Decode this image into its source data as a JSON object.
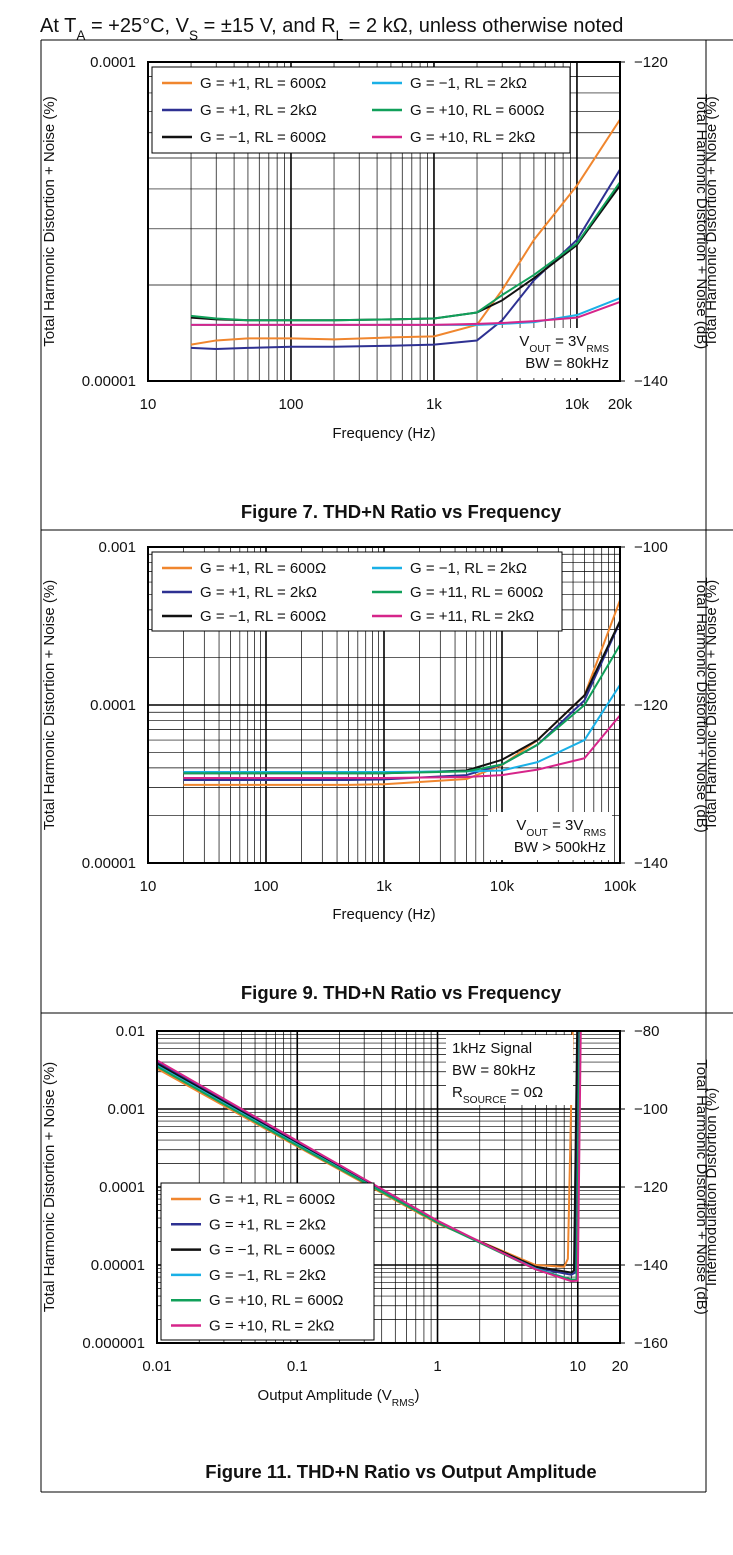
{
  "header": [
    {
      "text": "At T"
    },
    {
      "text": "A",
      "sub": true
    },
    {
      "text": " = +25°C, V"
    },
    {
      "text": "S",
      "sub": true
    },
    {
      "text": " = ±15 V, and R"
    },
    {
      "text": "L",
      "sub": true
    },
    {
      "text": " = 2 kΩ, unless otherwise noted"
    }
  ],
  "chart_data": [
    {
      "type": "line",
      "title": "Figure 7. THD+N Ratio vs Frequency",
      "xlabel": "Frequency (Hz)",
      "ylabel": "Total Harmonic Distortion + Noise (%)",
      "y2label": "Total Harmonic Distortion + Noise (dB)",
      "side_label": "Total Harmonic Distortion + Noise (%)",
      "xscale": "log",
      "yscale": "log",
      "grid": true,
      "legend": "upper left",
      "legend_columns": 2,
      "xlim": [
        10,
        20000
      ],
      "xticks": [
        10,
        100,
        {
          "value": 1000,
          "label": "1k"
        },
        {
          "value": 10000,
          "label": "10k"
        },
        {
          "value": 20000,
          "label": "20k"
        }
      ],
      "xminor": [
        20,
        30,
        40,
        50,
        60,
        70,
        80,
        90,
        200,
        300,
        400,
        500,
        600,
        700,
        800,
        900,
        2000,
        3000,
        4000,
        5000,
        6000,
        7000,
        8000,
        9000
      ],
      "ylim": [
        1e-05,
        0.0001
      ],
      "yticks": [
        1e-05,
        0.0001
      ],
      "yminor": [
        2e-05,
        3e-05,
        4e-05,
        5e-05,
        6e-05,
        7e-05,
        8e-05,
        9e-05
      ],
      "y2lim": [
        -140,
        -120
      ],
      "y2ticks": [
        {
          "value": -140,
          "label": "−140"
        },
        {
          "value": -120,
          "label": "−120"
        }
      ],
      "annotation": [
        [
          {
            "text": "V"
          },
          {
            "text": "OUT",
            "sub": true
          },
          {
            "text": " = 3V"
          },
          {
            "text": "RMS",
            "sub": true
          }
        ],
        [
          {
            "text": "BW = 80kHz"
          }
        ]
      ],
      "x": [
        20,
        30,
        50,
        100,
        200,
        500,
        1000,
        2000,
        3000,
        5000,
        10000,
        20000
      ],
      "series": [
        {
          "name": "G = +1, RL = 600Ω",
          "color": "#f0862e",
          "values": [
            1.3e-05,
            1.34e-05,
            1.36e-05,
            1.36e-05,
            1.35e-05,
            1.37e-05,
            1.38e-05,
            1.5e-05,
            1.93e-05,
            2.77e-05,
            4.1e-05,
            6.6e-05
          ]
        },
        {
          "name": "G = +1, RL = 2kΩ",
          "color": "#2e3192",
          "values": [
            1.27e-05,
            1.26e-05,
            1.27e-05,
            1.28e-05,
            1.28e-05,
            1.29e-05,
            1.3e-05,
            1.34e-05,
            1.55e-05,
            2.07e-05,
            2.77e-05,
            4.6e-05
          ]
        },
        {
          "name": "G = −1, RL = 600Ω",
          "color": "#111111",
          "values": [
            1.58e-05,
            1.56e-05,
            1.55e-05,
            1.55e-05,
            1.55e-05,
            1.56e-05,
            1.57e-05,
            1.64e-05,
            1.79e-05,
            2.1e-05,
            2.67e-05,
            4.1e-05
          ]
        },
        {
          "name": "G = −1, RL = 2kΩ",
          "color": "#1ab0e6",
          "values": [
            1.5e-05,
            1.5e-05,
            1.5e-05,
            1.5e-05,
            1.5e-05,
            1.5e-05,
            1.5e-05,
            1.5e-05,
            1.51e-05,
            1.53e-05,
            1.61e-05,
            1.82e-05
          ]
        },
        {
          "name": "G = +10, RL = 600Ω",
          "color": "#11a05a",
          "values": [
            1.6e-05,
            1.57e-05,
            1.55e-05,
            1.55e-05,
            1.55e-05,
            1.56e-05,
            1.57e-05,
            1.64e-05,
            1.86e-05,
            2.15e-05,
            2.7e-05,
            4.2e-05
          ]
        },
        {
          "name": "G = +10, RL = 2kΩ",
          "color": "#d6258a",
          "values": [
            1.5e-05,
            1.5e-05,
            1.5e-05,
            1.5e-05,
            1.5e-05,
            1.5e-05,
            1.5e-05,
            1.51e-05,
            1.52e-05,
            1.54e-05,
            1.58e-05,
            1.77e-05
          ]
        }
      ]
    },
    {
      "type": "line",
      "title": "Figure 9. THD+N Ratio vs Frequency",
      "xlabel": "Frequency (Hz)",
      "ylabel": "Total Harmonic Distortion + Noise (%)",
      "y2label": "Total Harmonic Distortion + Noise (dB)",
      "side_label": "Total Harmonic Distortion + Noise (%)",
      "xscale": "log",
      "yscale": "log",
      "grid": true,
      "legend": "upper left",
      "legend_columns": 2,
      "xlim": [
        10,
        100000
      ],
      "xticks": [
        10,
        100,
        {
          "value": 1000,
          "label": "1k"
        },
        {
          "value": 10000,
          "label": "10k"
        },
        {
          "value": 100000,
          "label": "100k"
        }
      ],
      "xminor": [
        20,
        30,
        40,
        50,
        60,
        70,
        80,
        90,
        200,
        300,
        400,
        500,
        600,
        700,
        800,
        900,
        2000,
        3000,
        4000,
        5000,
        6000,
        7000,
        8000,
        9000,
        20000,
        30000,
        40000,
        50000,
        60000,
        70000,
        80000,
        90000
      ],
      "ylim": [
        1e-05,
        0.001
      ],
      "yticks": [
        1e-05,
        0.0001,
        0.001
      ],
      "yminor": [
        2e-05,
        3e-05,
        4e-05,
        5e-05,
        6e-05,
        7e-05,
        8e-05,
        9e-05,
        0.0002,
        0.0003,
        0.0004,
        0.0005,
        0.0006,
        0.0007,
        0.0008,
        0.0009
      ],
      "y2lim": [
        -140,
        -100
      ],
      "y2ticks": [
        {
          "value": -140,
          "label": "−140"
        },
        {
          "value": -120,
          "label": "−120"
        },
        {
          "value": -100,
          "label": "−100"
        }
      ],
      "annotation": [
        [
          {
            "text": "V"
          },
          {
            "text": "OUT",
            "sub": true
          },
          {
            "text": " = 3V"
          },
          {
            "text": "RMS",
            "sub": true
          }
        ],
        [
          {
            "text": "BW > 500kHz"
          }
        ]
      ],
      "x": [
        20,
        50,
        100,
        500,
        1000,
        5000,
        10000,
        20000,
        50000,
        100000
      ],
      "series": [
        {
          "name": "G = +1, RL = 600Ω",
          "color": "#f0862e",
          "values": [
            3.12e-05,
            3.12e-05,
            3.12e-05,
            3.12e-05,
            3.15e-05,
            3.4e-05,
            4.17e-05,
            6e-05,
            0.000115,
            0.00046
          ]
        },
        {
          "name": "G = +1, RL = 2kΩ",
          "color": "#2e3192",
          "values": [
            3.35e-05,
            3.35e-05,
            3.35e-05,
            3.35e-05,
            3.38e-05,
            3.6e-05,
            4.2e-05,
            5.6e-05,
            0.000107,
            0.000335
          ]
        },
        {
          "name": "G = −1, RL = 600Ω",
          "color": "#111111",
          "values": [
            3.7e-05,
            3.7e-05,
            3.7e-05,
            3.7e-05,
            3.7e-05,
            3.85e-05,
            4.5e-05,
            6e-05,
            0.000115,
            0.00034
          ]
        },
        {
          "name": "G = −1, RL = 2kΩ",
          "color": "#1ab0e6",
          "values": [
            3.77e-05,
            3.77e-05,
            3.77e-05,
            3.77e-05,
            3.77e-05,
            3.8e-05,
            3.85e-05,
            4.35e-05,
            6e-05,
            0.000134
          ]
        },
        {
          "name": "G = +11, RL = 600Ω",
          "color": "#11a05a",
          "values": [
            3.7e-05,
            3.7e-05,
            3.7e-05,
            3.7e-05,
            3.7e-05,
            3.8e-05,
            4.2e-05,
            5.6e-05,
            0.0001,
            0.00024
          ]
        },
        {
          "name": "G = +11, RL = 2kΩ",
          "color": "#d6258a",
          "values": [
            3.45e-05,
            3.45e-05,
            3.45e-05,
            3.45e-05,
            3.45e-05,
            3.5e-05,
            3.6e-05,
            3.9e-05,
            4.6e-05,
            8.6e-05
          ]
        }
      ]
    },
    {
      "type": "line",
      "title": "Figure 11. THD+N Ratio vs Output Amplitude",
      "xlabel": [
        {
          "text": "Output Amplitude (V"
        },
        {
          "text": "RMS",
          "sub": true
        },
        {
          "text": ")"
        }
      ],
      "ylabel": "Total Harmonic Distortion + Noise (%)",
      "y2label": "Total Harmonic Distortion + Noise (dB)",
      "side_label": "Intermodulation Distortion (%)",
      "xscale": "log",
      "yscale": "log",
      "grid": true,
      "legend": "lower left",
      "legend_columns": 1,
      "xlim": [
        0.01,
        20
      ],
      "xticks": [
        0.01,
        0.1,
        1,
        10,
        20
      ],
      "xminor": [
        0.02,
        0.03,
        0.04,
        0.05,
        0.06,
        0.07,
        0.08,
        0.09,
        0.2,
        0.3,
        0.4,
        0.5,
        0.6,
        0.7,
        0.8,
        0.9,
        2,
        3,
        4,
        5,
        6,
        7,
        8,
        9
      ],
      "ylim": [
        1e-06,
        0.01
      ],
      "yticks": [
        1e-06,
        1e-05,
        0.0001,
        0.001,
        0.01
      ],
      "yminor": [
        2e-06,
        3e-06,
        4e-06,
        5e-06,
        6e-06,
        7e-06,
        8e-06,
        9e-06,
        2e-05,
        3e-05,
        4e-05,
        5e-05,
        6e-05,
        7e-05,
        8e-05,
        9e-05,
        0.0002,
        0.0003,
        0.0004,
        0.0005,
        0.0006,
        0.0007,
        0.0008,
        0.0009,
        0.002,
        0.003,
        0.004,
        0.005,
        0.006,
        0.007,
        0.008,
        0.009
      ],
      "y2lim": [
        -160,
        -80
      ],
      "y2ticks": [
        {
          "value": -160,
          "label": "−160"
        },
        {
          "value": -140,
          "label": "−140"
        },
        {
          "value": -120,
          "label": "−120"
        },
        {
          "value": -100,
          "label": "−100"
        },
        {
          "value": -80,
          "label": "−80"
        }
      ],
      "annotation": [
        [
          {
            "text": "1kHz Signal"
          }
        ],
        [
          {
            "text": "BW = 80kHz"
          }
        ],
        [
          {
            "text": "R"
          },
          {
            "text": "SOURCE",
            "sub": true
          },
          {
            "text": " = 0Ω"
          }
        ]
      ],
      "series": [
        {
          "name": "G = +1, RL = 600Ω",
          "color": "#f0862e",
          "x": [
            0.01,
            0.1,
            1,
            5,
            8,
            8.5,
            9.2
          ],
          "values": [
            0.0033,
            0.00033,
            3.4e-05,
            1e-05,
            9.5e-06,
            1.2e-05,
            0.01
          ]
        },
        {
          "name": "G = +1, RL = 2kΩ",
          "color": "#2e3192",
          "x": [
            0.01,
            0.1,
            1,
            5,
            9,
            9.6,
            10
          ],
          "values": [
            0.004,
            0.00038,
            3.6e-05,
            9.2e-06,
            7.5e-06,
            8e-06,
            0.01
          ]
        },
        {
          "name": "G = −1, RL = 600Ω",
          "color": "#111111",
          "x": [
            0.01,
            0.1,
            1,
            5,
            9,
            9.4,
            9.9
          ],
          "values": [
            0.0038,
            0.00036,
            3.5e-05,
            9.5e-06,
            8e-06,
            8.5e-06,
            0.01
          ]
        },
        {
          "name": "G = −1, RL = 2kΩ",
          "color": "#1ab0e6",
          "x": [
            0.01,
            0.1,
            1,
            5,
            9,
            9.8,
            10.3
          ],
          "values": [
            0.0036,
            0.00035,
            3.5e-05,
            9e-06,
            6.5e-06,
            6.5e-06,
            0.01
          ]
        },
        {
          "name": "G = +10, RL = 600Ω",
          "color": "#11a05a",
          "x": [
            0.01,
            0.1,
            1,
            5,
            9,
            9.8,
            10.3
          ],
          "values": [
            0.0035,
            0.00034,
            3.5e-05,
            8.8e-06,
            6.5e-06,
            6.5e-06,
            0.01
          ]
        },
        {
          "name": "G = +10, RL = 2kΩ",
          "color": "#d6258a",
          "x": [
            0.01,
            0.1,
            1,
            5,
            9,
            10,
            10.5
          ],
          "values": [
            0.0042,
            0.00039,
            3.7e-05,
            8.8e-06,
            6.2e-06,
            6.3e-06,
            0.01
          ]
        }
      ]
    }
  ]
}
